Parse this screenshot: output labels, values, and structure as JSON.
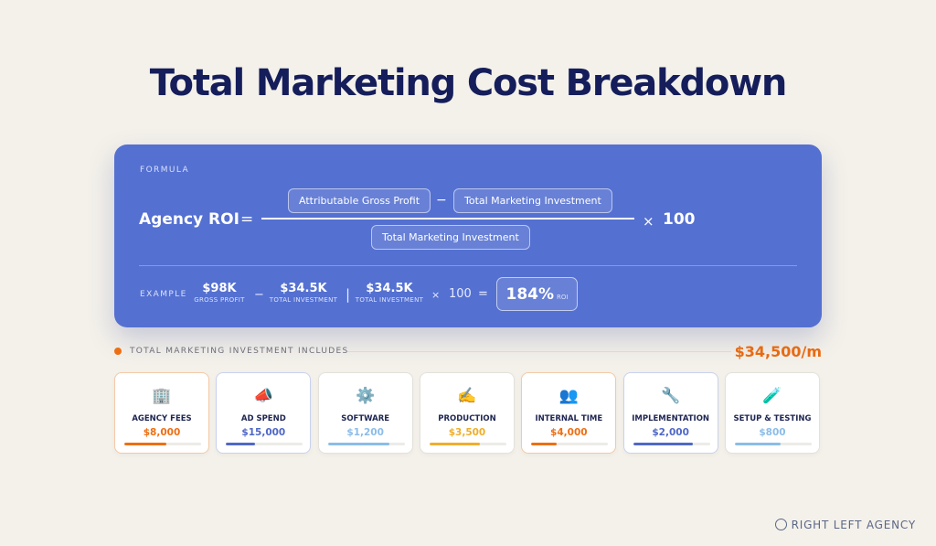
{
  "title": "Total Marketing Cost Breakdown",
  "formula": {
    "label": "FORMULA",
    "lhs": "Agency ROI",
    "equals": "=",
    "numerator_a": "Attributable Gross Profit",
    "minus": "−",
    "numerator_b": "Total Marketing Investment",
    "denominator": "Total Marketing Investment",
    "times": "×",
    "multiplier": "100"
  },
  "example": {
    "label": "EXAMPLE",
    "gross_profit": "$98K",
    "gross_profit_sub": "GROSS PROFIT",
    "minus": "−",
    "investment": "$34.5K",
    "investment_sub": "TOTAL INVESTMENT",
    "divide": "|",
    "investment2": "$34.5K",
    "investment2_sub": "TOTAL INVESTMENT",
    "times": "×",
    "multiplier": "100",
    "equals": "=",
    "result": "184%",
    "result_sub": "ROI"
  },
  "includes": {
    "label": "TOTAL MARKETING INVESTMENT INCLUDES",
    "total": "$34,500/m",
    "accent": "#ee6f13"
  },
  "items": [
    {
      "name": "AGENCY FEES",
      "amount": "$8,000",
      "icon": "🏢",
      "icon_name": "building-icon",
      "color": "#ee6f13",
      "fill": 0.55
    },
    {
      "name": "AD SPEND",
      "amount": "$15,000",
      "icon": "📣",
      "icon_name": "megaphone-icon",
      "color": "#4f68c7",
      "fill": 0.38
    },
    {
      "name": "SOFTWARE",
      "amount": "$1,200",
      "icon": "⚙️",
      "icon_name": "gear-icon",
      "color": "#8bbde8",
      "fill": 0.8
    },
    {
      "name": "PRODUCTION",
      "amount": "$3,500",
      "icon": "✍️",
      "icon_name": "writing-hand-icon",
      "color": "#efae2b",
      "fill": 0.65
    },
    {
      "name": "INTERNAL TIME",
      "amount": "$4,000",
      "icon": "👥",
      "icon_name": "people-icon",
      "color": "#ee6f13",
      "fill": 0.33
    },
    {
      "name": "IMPLEMENTATION",
      "amount": "$2,000",
      "icon": "🔧",
      "icon_name": "wrench-icon",
      "color": "#4f68c7",
      "fill": 0.78
    },
    {
      "name": "SETUP & TESTING",
      "amount": "$800",
      "icon": "🧪",
      "icon_name": "test-tube-icon",
      "color": "#8bbde8",
      "fill": 0.6
    }
  ],
  "brand": "RIGHT LEFT AGENCY"
}
